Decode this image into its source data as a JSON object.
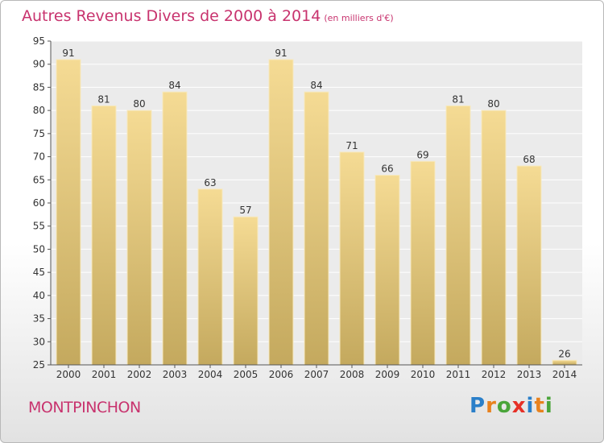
{
  "header": {
    "title": "Autres Revenus Divers de 2000 à 2014",
    "unit": "(en milliers d'€)"
  },
  "footer": {
    "commune": "MONTPINCHON",
    "logo_letters": [
      "P",
      "r",
      "o",
      "x",
      "i",
      "t",
      "i"
    ],
    "logo_colors": [
      "#2a7fc9",
      "#e8821e",
      "#4aa53a",
      "#e63027",
      "#2a7fc9",
      "#e8821e",
      "#4aa53a"
    ]
  },
  "chart_data": {
    "type": "bar",
    "categories": [
      "2000",
      "2001",
      "2002",
      "2003",
      "2004",
      "2005",
      "2006",
      "2007",
      "2008",
      "2009",
      "2010",
      "2011",
      "2012",
      "2013",
      "2014"
    ],
    "values": [
      91,
      81,
      80,
      84,
      63,
      57,
      91,
      84,
      71,
      66,
      69,
      81,
      80,
      68,
      26
    ],
    "title": "Autres Revenus Divers de 2000 à 2014",
    "ylim": [
      25,
      95
    ],
    "yticks": [
      25,
      30,
      35,
      40,
      45,
      50,
      55,
      60,
      65,
      70,
      75,
      80,
      85,
      90,
      95
    ],
    "grid": true,
    "bar_color_top": "#f5db94",
    "bar_color_bottom": "#c4a95e",
    "plot_background": "#ebebeb"
  }
}
